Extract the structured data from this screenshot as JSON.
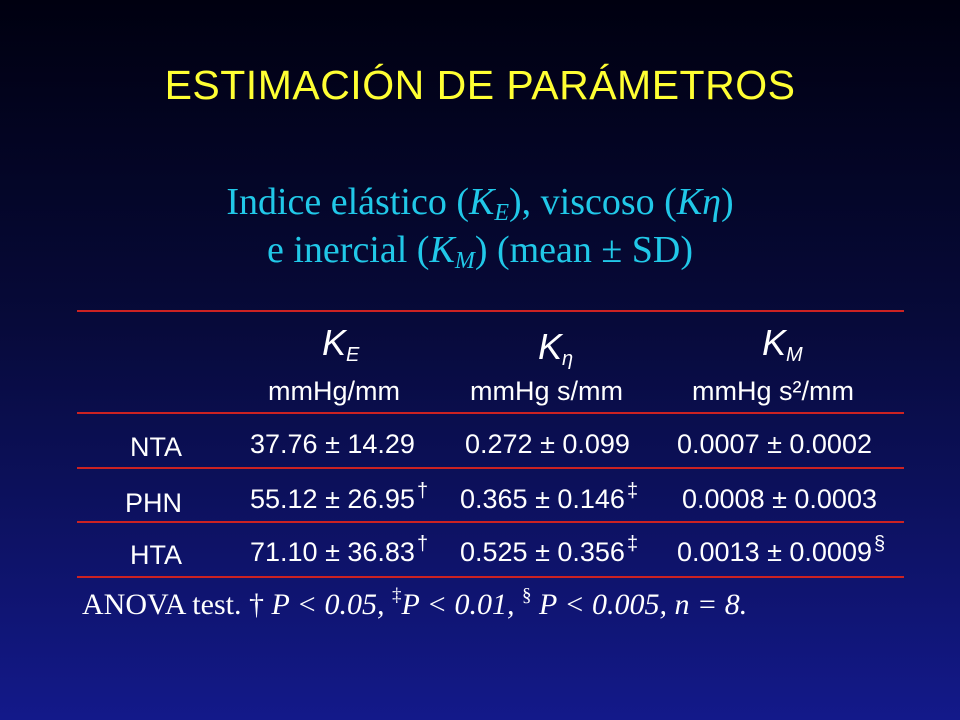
{
  "slide": {
    "title": "ESTIMACIÓN DE PARÁMETROS",
    "subtitle": {
      "line1_prefix": "Indice elástico (",
      "ke_base": "K",
      "ke_sub": "E",
      "line1_mid": "), viscoso (",
      "keta": "Kη",
      "line1_suffix": ")",
      "line2_prefix": "e inercial (",
      "km_base": "K",
      "km_sub": "M",
      "line2_suffix": ") (mean ± SD)"
    }
  },
  "table": {
    "columns": [
      {
        "symbol_base": "K",
        "symbol_sub": "E",
        "unit": "mmHg/mm"
      },
      {
        "symbol_base": "K",
        "symbol_sub": "η",
        "unit": "mmHg s/mm"
      },
      {
        "symbol_base": "K",
        "symbol_sub": "M",
        "unit": "mmHg s²/mm"
      }
    ],
    "rows": [
      {
        "label": "NTA",
        "ke": "37.76 ± 14.29",
        "ke_mark": "",
        "keta": "0.272 ± 0.099",
        "keta_mark": "",
        "km": "0.0007 ± 0.0002",
        "km_mark": ""
      },
      {
        "label": "PHN",
        "ke": "55.12 ± 26.95",
        "ke_mark": "†",
        "keta": "0.365 ± 0.146",
        "keta_mark": "‡",
        "km": "0.0008 ± 0.0003",
        "km_mark": ""
      },
      {
        "label": "HTA",
        "ke": "71.10 ± 36.83",
        "ke_mark": "†",
        "keta": "0.525 ± 0.356",
        "keta_mark": "‡",
        "km": "0.0013 ± 0.0009",
        "km_mark": "§"
      }
    ]
  },
  "footnote": {
    "text1": "ANOVA test. ",
    "mark1": "†",
    "text2": " P < 0.05, ",
    "mark2": "‡",
    "text3": "P < 0.01, ",
    "mark3": "§",
    "text4": " P < 0.005, n = 8."
  },
  "colors": {
    "title": "#ffff33",
    "subtitle": "#21c8e8",
    "rule": "#cc2222",
    "background_top": "#000010",
    "background_bottom": "#13198a"
  }
}
